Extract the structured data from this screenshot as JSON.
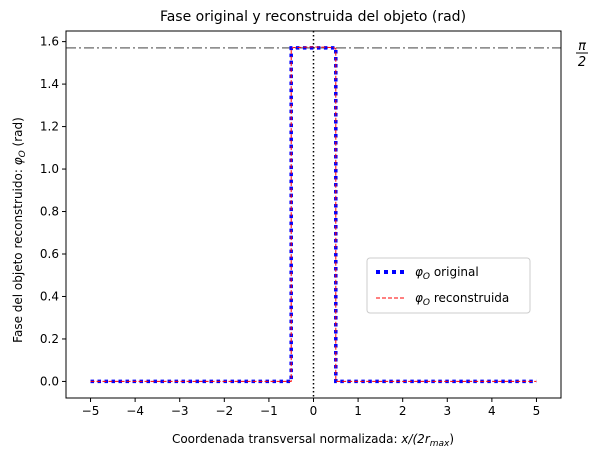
{
  "chart_data": {
    "type": "line",
    "title": "Fase original y reconstruida del objeto (rad)",
    "xlabel_main": "Coordenada transversal normalizada: ",
    "xlabel_math": "x/(2r",
    "xlabel_sub": "max",
    "xlabel_close": ")",
    "ylabel_main": "Fase del objeto reconstruido: ",
    "ylabel_phi": "φ",
    "ylabel_sub": "O",
    "ylabel_unit": " (rad)",
    "xlim": [
      -5.55,
      5.55
    ],
    "ylim": [
      -0.078,
      1.65
    ],
    "xticks": [
      -5,
      -4,
      -3,
      -2,
      -1,
      0,
      1,
      2,
      3,
      4,
      5
    ],
    "xtick_labels": [
      "−5",
      "−4",
      "−3",
      "−2",
      "−1",
      "0",
      "1",
      "2",
      "3",
      "4",
      "5"
    ],
    "yticks": [
      0.0,
      0.2,
      0.4,
      0.6,
      0.8,
      1.0,
      1.2,
      1.4,
      1.6
    ],
    "ytick_labels": [
      "0.0",
      "0.2",
      "0.4",
      "0.6",
      "0.8",
      "1.0",
      "1.2",
      "1.4",
      "1.6"
    ],
    "grid": false,
    "legend_position": "center-right",
    "series": [
      {
        "name": "original",
        "legend_phi": "φ",
        "legend_sub": "O",
        "color": "#0000ff",
        "style": "dotted",
        "x": [
          -5,
          -0.5,
          -0.5,
          0.5,
          0.5,
          5
        ],
        "y": [
          0,
          0,
          1.5708,
          1.5708,
          0,
          0
        ]
      },
      {
        "name": "reconstruida",
        "legend_phi": "φ",
        "legend_sub": "O",
        "color": "#ff0000",
        "style": "dashed",
        "x": [
          -5,
          -0.5,
          -0.5,
          -0.45,
          0,
          0.45,
          0.5,
          0.5,
          5
        ],
        "y": [
          0,
          0,
          1.568,
          1.572,
          1.575,
          1.572,
          1.568,
          0,
          0
        ]
      }
    ],
    "reference_lines": [
      {
        "type": "horizontal",
        "y": 1.5708,
        "color": "#808080",
        "style": "dashdot",
        "label_num": "π",
        "label_den": "2"
      },
      {
        "type": "vertical",
        "x": 0,
        "color": "#000000",
        "style": "dotted"
      }
    ]
  }
}
